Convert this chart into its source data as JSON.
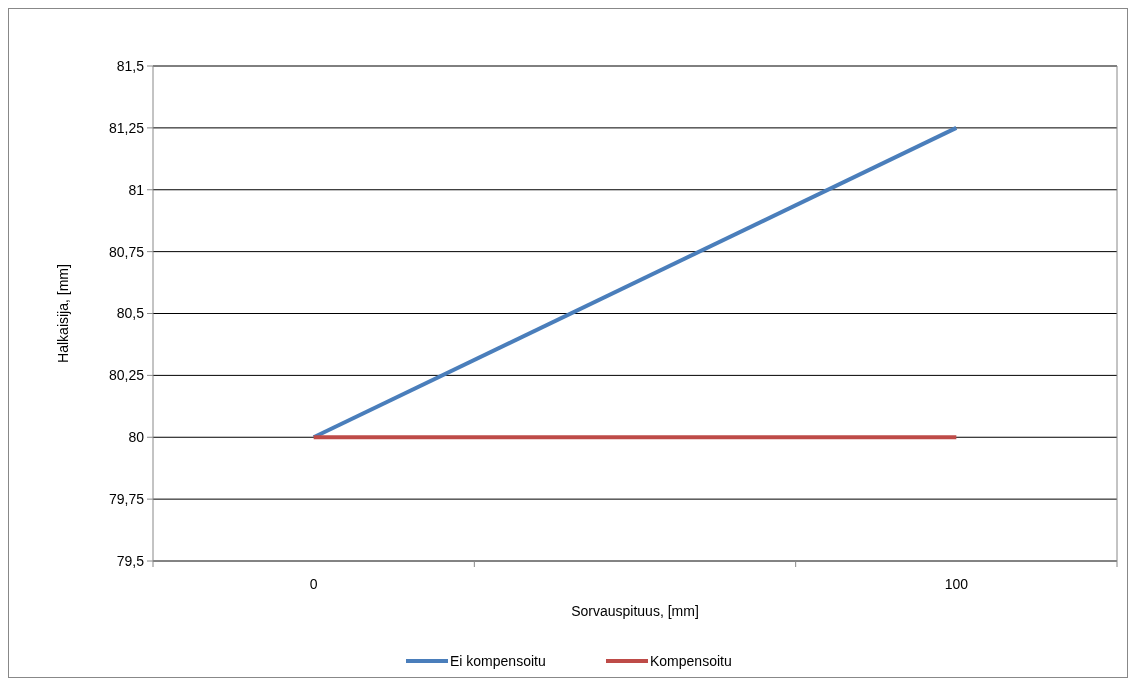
{
  "chart_data": {
    "type": "line",
    "xlabel": "Sorvauspituus, [mm]",
    "ylabel": "Halkaisija, [mm]",
    "x": [
      0,
      100
    ],
    "series": [
      {
        "name": "Ei kompensoitu",
        "color": "#4a7ebb",
        "values": [
          80,
          81.25
        ]
      },
      {
        "name": "Kompensoitu",
        "color": "#be4b48",
        "values": [
          80,
          80
        ]
      }
    ],
    "xlim": [
      -25,
      125
    ],
    "xticks": [
      {
        "value": -25,
        "label": null
      },
      {
        "value": 0,
        "label": "0"
      },
      {
        "value": 25,
        "label": null
      },
      {
        "value": 75,
        "label": null
      },
      {
        "value": 100,
        "label": "100"
      },
      {
        "value": 125,
        "label": null
      }
    ],
    "ylim": [
      79.5,
      81.5
    ],
    "yticks": [
      {
        "value": 79.5,
        "label": "79,5"
      },
      {
        "value": 79.75,
        "label": "79,75"
      },
      {
        "value": 80,
        "label": "80"
      },
      {
        "value": 80.25,
        "label": "80,25"
      },
      {
        "value": 80.5,
        "label": "80,5"
      },
      {
        "value": 80.75,
        "label": "80,75"
      },
      {
        "value": 81,
        "label": "81"
      },
      {
        "value": 81.25,
        "label": "81,25"
      },
      {
        "value": 81.5,
        "label": "81,5"
      }
    ],
    "grid": "y",
    "legend": "bottom",
    "marker": "none",
    "line_style": "solid"
  }
}
